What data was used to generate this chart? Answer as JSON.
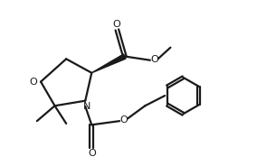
{
  "bg_color": "#ffffff",
  "line_color": "#1a1a1a",
  "line_width": 1.6,
  "figsize": [
    2.84,
    1.84
  ],
  "dpi": 100,
  "xlim": [
    0,
    10
  ],
  "ylim": [
    0,
    6.5
  ]
}
